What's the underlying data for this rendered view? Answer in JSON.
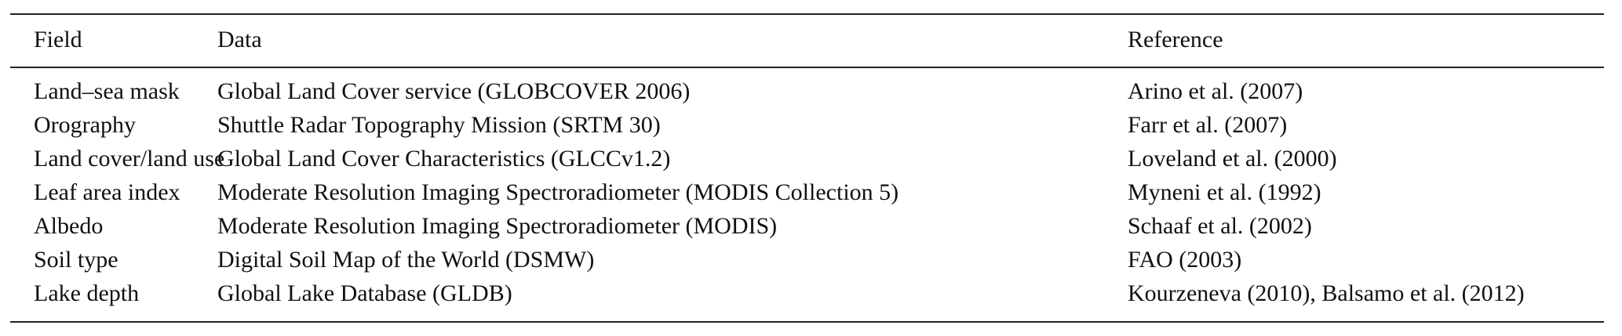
{
  "table": {
    "headers": [
      "Field",
      "Data",
      "Reference"
    ],
    "rows": [
      [
        "Land–sea mask",
        "Global Land Cover service (GLOBCOVER 2006)",
        "Arino et al. (2007)"
      ],
      [
        "Orography",
        "Shuttle Radar Topography Mission (SRTM 30)",
        "Farr et al. (2007)"
      ],
      [
        "Land cover/land use",
        "Global Land Cover Characteristics (GLCCv1.2)",
        "Loveland et al. (2000)"
      ],
      [
        "Leaf area index",
        "Moderate Resolution Imaging Spectroradiometer (MODIS Collection 5)",
        "Myneni et al. (1992)"
      ],
      [
        "Albedo",
        "Moderate Resolution Imaging Spectroradiometer (MODIS)",
        "Schaaf et al. (2002)"
      ],
      [
        "Soil type",
        "Digital Soil Map of the World (DSMW)",
        "FAO (2003)"
      ],
      [
        "Lake depth",
        "Global Lake Database (GLDB)",
        "Kourzeneva (2010), Balsamo et al. (2012)"
      ]
    ]
  }
}
